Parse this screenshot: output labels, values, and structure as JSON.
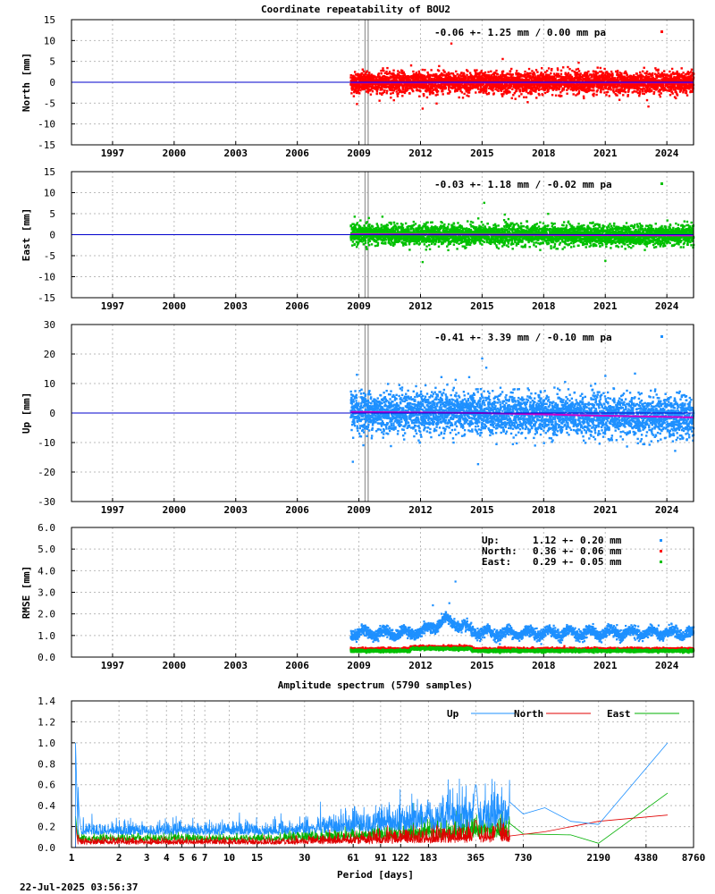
{
  "footer": {
    "timestamp": "22-Jul-2025 03:56:37"
  },
  "chart_data": [
    {
      "type": "scatter",
      "title": "Coordinate repeatability of BOU2",
      "ylabel": "North [mm]",
      "ylim": [
        -15,
        15
      ],
      "yticks": [
        15,
        10,
        5,
        0,
        -5,
        -10,
        -15
      ],
      "xlim": [
        1995,
        2025.3
      ],
      "xticks": [
        1997,
        2000,
        2003,
        2006,
        2009,
        2012,
        2015,
        2018,
        2021,
        2024
      ],
      "data_start": 2008.6,
      "vlines": [
        2009.3,
        2009.45,
        2025.3
      ],
      "legend": "-0.06 +- 1.25 mm /  0.00 mm pa",
      "color": "#ff0000",
      "spread": 1.25,
      "trend": [
        [
          2008.6,
          -0.05
        ],
        [
          2025.3,
          -0.05
        ]
      ],
      "outliers": [
        [
          2008.9,
          -5.2
        ],
        [
          2012.1,
          -6.3
        ],
        [
          2013.5,
          9.3
        ],
        [
          2016.0,
          5.6
        ],
        [
          2023.1,
          -5.8
        ],
        [
          2019.7,
          4.7
        ]
      ],
      "grid": true
    },
    {
      "type": "scatter",
      "ylabel": "East [mm]",
      "ylim": [
        -15,
        15
      ],
      "yticks": [
        15,
        10,
        5,
        0,
        -5,
        -10,
        -15
      ],
      "xlim": [
        1995,
        2025.3
      ],
      "xticks": [
        1997,
        2000,
        2003,
        2006,
        2009,
        2012,
        2015,
        2018,
        2021,
        2024
      ],
      "data_start": 2008.6,
      "vlines": [
        2009.3,
        2009.45,
        2025.3
      ],
      "legend": "-0.03 +- 1.18 mm / -0.02 mm pa",
      "color": "#00c000",
      "spread": 1.18,
      "trend": [
        [
          2008.6,
          0.1
        ],
        [
          2025.3,
          -0.2
        ]
      ],
      "outliers": [
        [
          2015.1,
          7.6
        ],
        [
          2016.1,
          4.8
        ],
        [
          2012.1,
          -6.5
        ],
        [
          2021.0,
          -6.2
        ]
      ],
      "grid": true
    },
    {
      "type": "scatter",
      "ylabel": "Up [mm]",
      "ylim": [
        -30,
        30
      ],
      "yticks": [
        30,
        20,
        10,
        0,
        -10,
        -20,
        -30
      ],
      "xlim": [
        1995,
        2025.3
      ],
      "xticks": [
        1997,
        2000,
        2003,
        2006,
        2009,
        2012,
        2015,
        2018,
        2021,
        2024
      ],
      "data_start": 2008.6,
      "vlines": [
        2009.3,
        2009.45,
        2025.3
      ],
      "legend": "-0.41 +- 3.39 mm / -0.10 mm pa",
      "color": "#1e90ff",
      "spread": 3.39,
      "trend": [
        [
          2008.6,
          0.4
        ],
        [
          2015.0,
          0.0
        ],
        [
          2020.0,
          -0.8
        ],
        [
          2025.3,
          -1.5
        ]
      ],
      "outliers": [
        [
          2008.7,
          -16.5
        ],
        [
          2008.9,
          13
        ],
        [
          2014.8,
          -17.3
        ],
        [
          2015.0,
          18.5
        ],
        [
          2015.2,
          15.4
        ],
        [
          2021.0,
          12.6
        ],
        [
          2024.4,
          -12.8
        ]
      ],
      "grid": true
    },
    {
      "type": "scatter",
      "ylabel": "RMSE [mm]",
      "ylim": [
        0,
        6
      ],
      "yticks": [
        "6.0",
        "5.0",
        "4.0",
        "3.0",
        "2.0",
        "1.0",
        "0.0"
      ],
      "xlim": [
        1995,
        2025.3
      ],
      "xticks": [
        1997,
        2000,
        2003,
        2006,
        2009,
        2012,
        2015,
        2018,
        2021,
        2024
      ],
      "data_start": 2008.6,
      "vlines": [
        2025.3
      ],
      "legend_rows": [
        {
          "label": "Up:",
          "value": "1.12 +- 0.20 mm",
          "color": "#1e90ff"
        },
        {
          "label": "North:",
          "value": "0.36 +- 0.06 mm",
          "color": "#ff0000"
        },
        {
          "label": "East:",
          "value": "0.29 +- 0.05 mm",
          "color": "#00c000"
        }
      ],
      "series": [
        {
          "name": "Up",
          "mean": 1.12,
          "sd": 0.2,
          "color": "#1e90ff"
        },
        {
          "name": "North",
          "mean": 0.36,
          "sd": 0.06,
          "color": "#ff0000"
        },
        {
          "name": "East",
          "mean": 0.29,
          "sd": 0.05,
          "color": "#00c000"
        }
      ],
      "peak": [
        [
          2013.7,
          3.5
        ],
        [
          2013.4,
          2.5
        ],
        [
          2012.6,
          2.4
        ]
      ],
      "grid": true
    },
    {
      "type": "line",
      "title": "Amplitude spectrum (5790 samples)",
      "xlabel": "Period [days]",
      "ylabel": "",
      "xscale": "log",
      "xlim": [
        1,
        8760
      ],
      "ylim": [
        0,
        1.4
      ],
      "yticks": [
        "1.4",
        "1.2",
        "1.0",
        "0.8",
        "0.6",
        "0.4",
        "0.2",
        "0.0"
      ],
      "xticks": [
        1,
        2,
        3,
        4,
        5,
        6,
        7,
        10,
        15,
        30,
        61,
        91,
        122,
        183,
        365,
        730,
        2190,
        4380,
        8760
      ],
      "series": [
        {
          "name": "Up",
          "color": "#1e90ff",
          "peaks": [
            [
              1.06,
              1.0
            ],
            [
              1.1,
              0.35
            ],
            [
              365,
              0.6
            ],
            [
              183,
              0.32
            ],
            [
              730,
              0.32
            ],
            [
              1000,
              0.38
            ],
            [
              1460,
              0.25
            ],
            [
              2190,
              0.22
            ],
            [
              6000,
              1.0
            ]
          ]
        },
        {
          "name": "North",
          "color": "#e00000",
          "peaks": [
            [
              1.06,
              0.22
            ],
            [
              365,
              0.26
            ],
            [
              500,
              0.22
            ],
            [
              1000,
              0.15
            ],
            [
              2190,
              0.25
            ],
            [
              6000,
              0.31
            ]
          ]
        },
        {
          "name": "East",
          "color": "#00b000",
          "peaks": [
            [
              1.06,
              0.3
            ],
            [
              365,
              0.12
            ],
            [
              730,
              0.13
            ],
            [
              1460,
              0.12
            ],
            [
              2190,
              0.04
            ],
            [
              6000,
              0.52
            ]
          ]
        }
      ],
      "grid": true
    }
  ]
}
